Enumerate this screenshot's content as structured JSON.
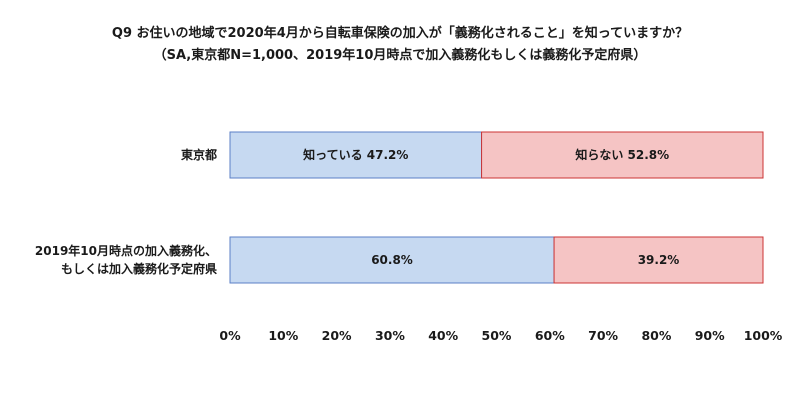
{
  "chart_data": {
    "type": "bar",
    "orientation": "horizontal",
    "stacked": "100%",
    "title": "Q9 お住いの地域で2020年4月から自転車保険の加入が「義務化されること」を知っていますか？",
    "subtitle": "（SA,東京都N=1,000、2019年10月時点で加入義務化もしくは義務化予定府県）",
    "categories": [
      [
        "東京都"
      ],
      [
        "2019年10月時点の加入義務化、",
        "もしくは加入義務化予定府県"
      ]
    ],
    "series": [
      {
        "name": "知っている",
        "values": [
          47.2,
          60.8
        ],
        "labels": [
          "知っている  47.2%",
          "60.8%"
        ],
        "color": "#c6d9f1",
        "stroke": "#5b7fc6"
      },
      {
        "name": "知らない",
        "values": [
          52.8,
          39.2
        ],
        "labels": [
          "知らない  52.8%",
          "39.2%"
        ],
        "color": "#f5c4c4",
        "stroke": "#cc3333"
      }
    ],
    "xlim": [
      0,
      100
    ],
    "ticks": [
      0,
      10,
      20,
      30,
      40,
      50,
      60,
      70,
      80,
      90,
      100
    ],
    "tick_labels": [
      "0%",
      "10%",
      "20%",
      "30%",
      "40%",
      "50%",
      "60%",
      "70%",
      "80%",
      "90%",
      "100%"
    ],
    "grid": false,
    "legend": "none"
  }
}
